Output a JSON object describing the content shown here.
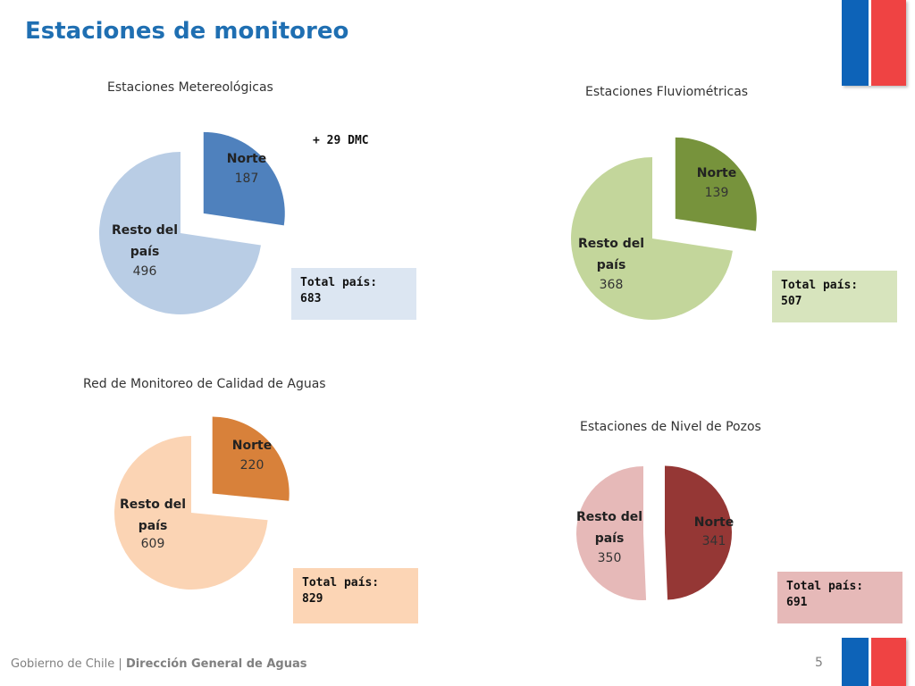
{
  "page": {
    "title": "Estaciones de monitoreo",
    "footer_org": "Gobierno de Chile",
    "footer_separator": "|",
    "footer_dept": "Dirección General de Aguas",
    "page_number": "5"
  },
  "colors": {
    "title": "#1f6fb2",
    "flag_blue": "#0d63b8",
    "flag_red": "#ef4343"
  },
  "chart_data": [
    {
      "type": "pie",
      "title": "Estaciones Metereológicas",
      "categories": [
        "Norte",
        "Resto del país"
      ],
      "values": [
        187,
        496
      ],
      "colors": [
        "#4f81bd",
        "#b9cde5"
      ],
      "exploded": "Norte",
      "total_label": "Total país:",
      "total_value": "683",
      "total_box_color": "#dce6f2",
      "note": "+ 29 DMC"
    },
    {
      "type": "pie",
      "title": "Estaciones Fluviométricas",
      "categories": [
        "Norte",
        "Resto del país"
      ],
      "values": [
        139,
        368
      ],
      "colors": [
        "#77933c",
        "#c3d69b"
      ],
      "exploded": "Norte",
      "total_label": "Total país:",
      "total_value": "507",
      "total_box_color": "#d7e4bd"
    },
    {
      "type": "pie",
      "title": "Red de Monitoreo de Calidad de Aguas",
      "categories": [
        "Norte",
        "Resto del país"
      ],
      "values": [
        220,
        609
      ],
      "colors": [
        "#d8813a",
        "#fbd4b4"
      ],
      "exploded": "Norte",
      "total_label": "Total país:",
      "total_value": "829",
      "total_box_color": "#fcd5b5"
    },
    {
      "type": "pie",
      "title": "Estaciones de Nivel de Pozos",
      "categories": [
        "Norte",
        "Resto del país"
      ],
      "values": [
        341,
        350
      ],
      "colors": [
        "#953735",
        "#e6b9b8"
      ],
      "exploded": "Norte",
      "total_label": "Total país:",
      "total_value": "691",
      "total_box_color": "#e6b9b8"
    }
  ]
}
